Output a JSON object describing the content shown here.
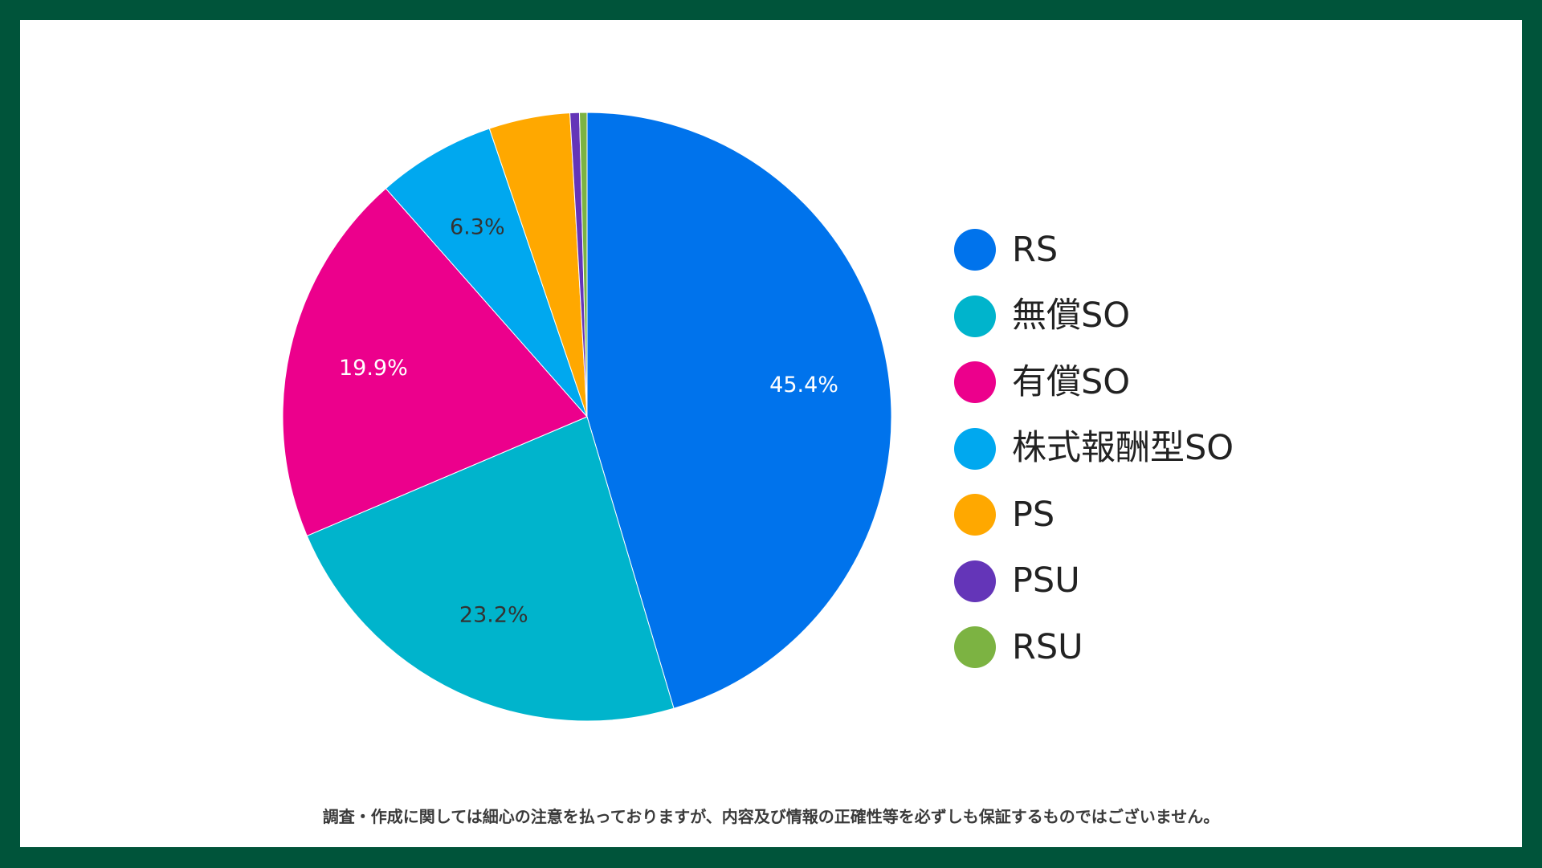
{
  "chart_data": {
    "type": "pie",
    "categories": [
      "RS",
      "無償SO",
      "有償SO",
      "株式報酬型SO",
      "PS",
      "PSU",
      "RSU"
    ],
    "values": [
      45.4,
      23.2,
      19.9,
      6.3,
      4.3,
      0.5,
      0.4
    ],
    "data_labels": [
      "45.4%",
      "23.2%",
      "19.9%",
      "6.3%",
      "",
      "",
      ""
    ],
    "colors": [
      "#0073EC",
      "#00B4CC",
      "#EC008C",
      "#00A8EF",
      "#FFA800",
      "#6435B8",
      "#7CB342"
    ],
    "label_colors": [
      "#ffffff",
      "#333333",
      "#ffffff",
      "#333333",
      "#333333",
      "#333333",
      "#333333"
    ],
    "legend": "right"
  },
  "footer": {
    "disclaimer": "調査・作成に関しては細心の注意を払っておりますが、内容及び情報の正確性等を必ずしも保証するものではございません。"
  }
}
